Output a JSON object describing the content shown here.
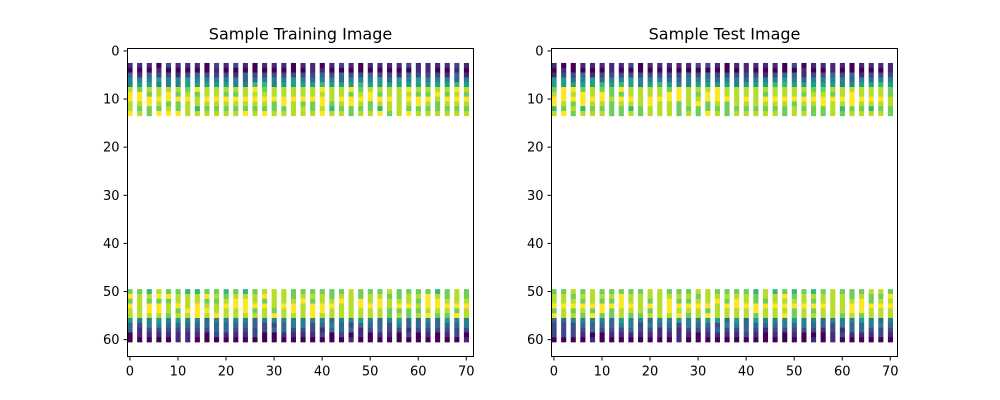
{
  "chart_data": [
    {
      "type": "heatmap",
      "title": "Sample Training Image",
      "xlabel": "",
      "ylabel": "",
      "x_ticks": [
        0,
        10,
        20,
        30,
        40,
        50,
        60,
        70
      ],
      "y_ticks": [
        0,
        10,
        20,
        30,
        40,
        50,
        60
      ],
      "xlim": [
        -0.5,
        71.5
      ],
      "ylim": [
        63.5,
        -0.5
      ],
      "image_size": [
        64,
        72
      ],
      "colormap": "viridis",
      "data_rows": [
        3,
        4,
        5,
        6,
        7,
        8,
        9,
        10,
        11,
        12,
        13,
        50,
        51,
        52,
        53,
        54,
        55,
        56,
        57,
        58,
        59,
        60
      ],
      "white_rows": [
        0,
        1,
        2,
        14,
        15,
        16,
        17,
        18,
        19,
        20,
        21,
        22,
        23,
        24,
        25,
        26,
        27,
        28,
        29,
        30,
        31,
        32,
        33,
        34,
        35,
        36,
        37,
        38,
        39,
        40,
        41,
        42,
        43,
        44,
        45,
        46,
        47,
        48,
        49,
        61,
        62,
        63
      ],
      "gap_column_period": 2,
      "grid": false
    },
    {
      "type": "heatmap",
      "title": "Sample Test Image",
      "xlabel": "",
      "ylabel": "",
      "x_ticks": [
        0,
        10,
        20,
        30,
        40,
        50,
        60,
        70
      ],
      "y_ticks": [
        0,
        10,
        20,
        30,
        40,
        50,
        60
      ],
      "xlim": [
        -0.5,
        71.5
      ],
      "ylim": [
        63.5,
        -0.5
      ],
      "image_size": [
        64,
        72
      ],
      "colormap": "viridis",
      "data_rows": [
        3,
        4,
        5,
        6,
        7,
        8,
        9,
        10,
        11,
        12,
        13,
        50,
        51,
        52,
        53,
        54,
        55,
        56,
        57,
        58,
        59,
        60
      ],
      "white_rows": [
        0,
        1,
        2,
        14,
        15,
        16,
        17,
        18,
        19,
        20,
        21,
        22,
        23,
        24,
        25,
        26,
        27,
        28,
        29,
        30,
        31,
        32,
        33,
        34,
        35,
        36,
        37,
        38,
        39,
        40,
        41,
        42,
        43,
        44,
        45,
        46,
        47,
        48,
        49,
        61,
        62,
        63
      ],
      "gap_column_period": 2,
      "grid": false
    }
  ]
}
